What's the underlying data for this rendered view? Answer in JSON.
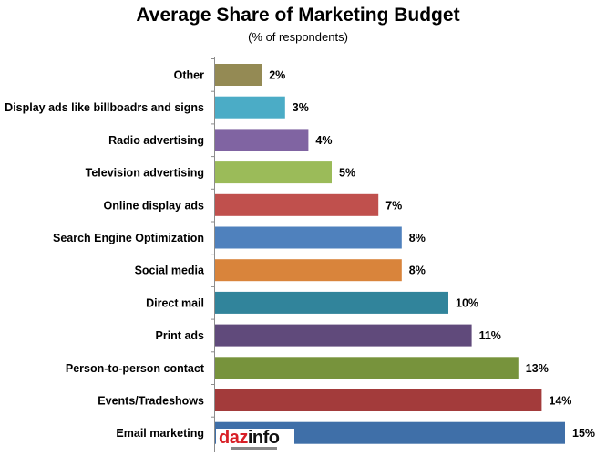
{
  "chart_data": {
    "type": "bar",
    "orientation": "horizontal",
    "title": "Average Share of Marketing Budget",
    "subtitle": "(% of respondents)",
    "categories": [
      "Other",
      "Display ads like billboadrs and signs",
      "Radio advertising",
      "Television advertising",
      "Online display ads",
      "Search Engine Optimization",
      "Social media",
      "Direct mail",
      "Print ads",
      "Person-to-person contact",
      "Events/Tradeshows",
      "Email marketing"
    ],
    "values": [
      2,
      3,
      4,
      5,
      7,
      8,
      8,
      10,
      11,
      13,
      14,
      15
    ],
    "value_labels": [
      "2%",
      "3%",
      "4%",
      "5%",
      "7%",
      "8%",
      "8%",
      "10%",
      "11%",
      "13%",
      "14%",
      "15%"
    ],
    "colors": [
      "#948a54",
      "#4bacc6",
      "#8064a2",
      "#9bbb59",
      "#c0504d",
      "#4f81bd",
      "#d9843b",
      "#31849b",
      "#604a7b",
      "#77933c",
      "#a33b3b",
      "#3f6fa8"
    ],
    "xlim": [
      0,
      15
    ],
    "grid": false,
    "legend": "none"
  },
  "logo": {
    "text_part1": "daz",
    "text_part2": "info"
  }
}
